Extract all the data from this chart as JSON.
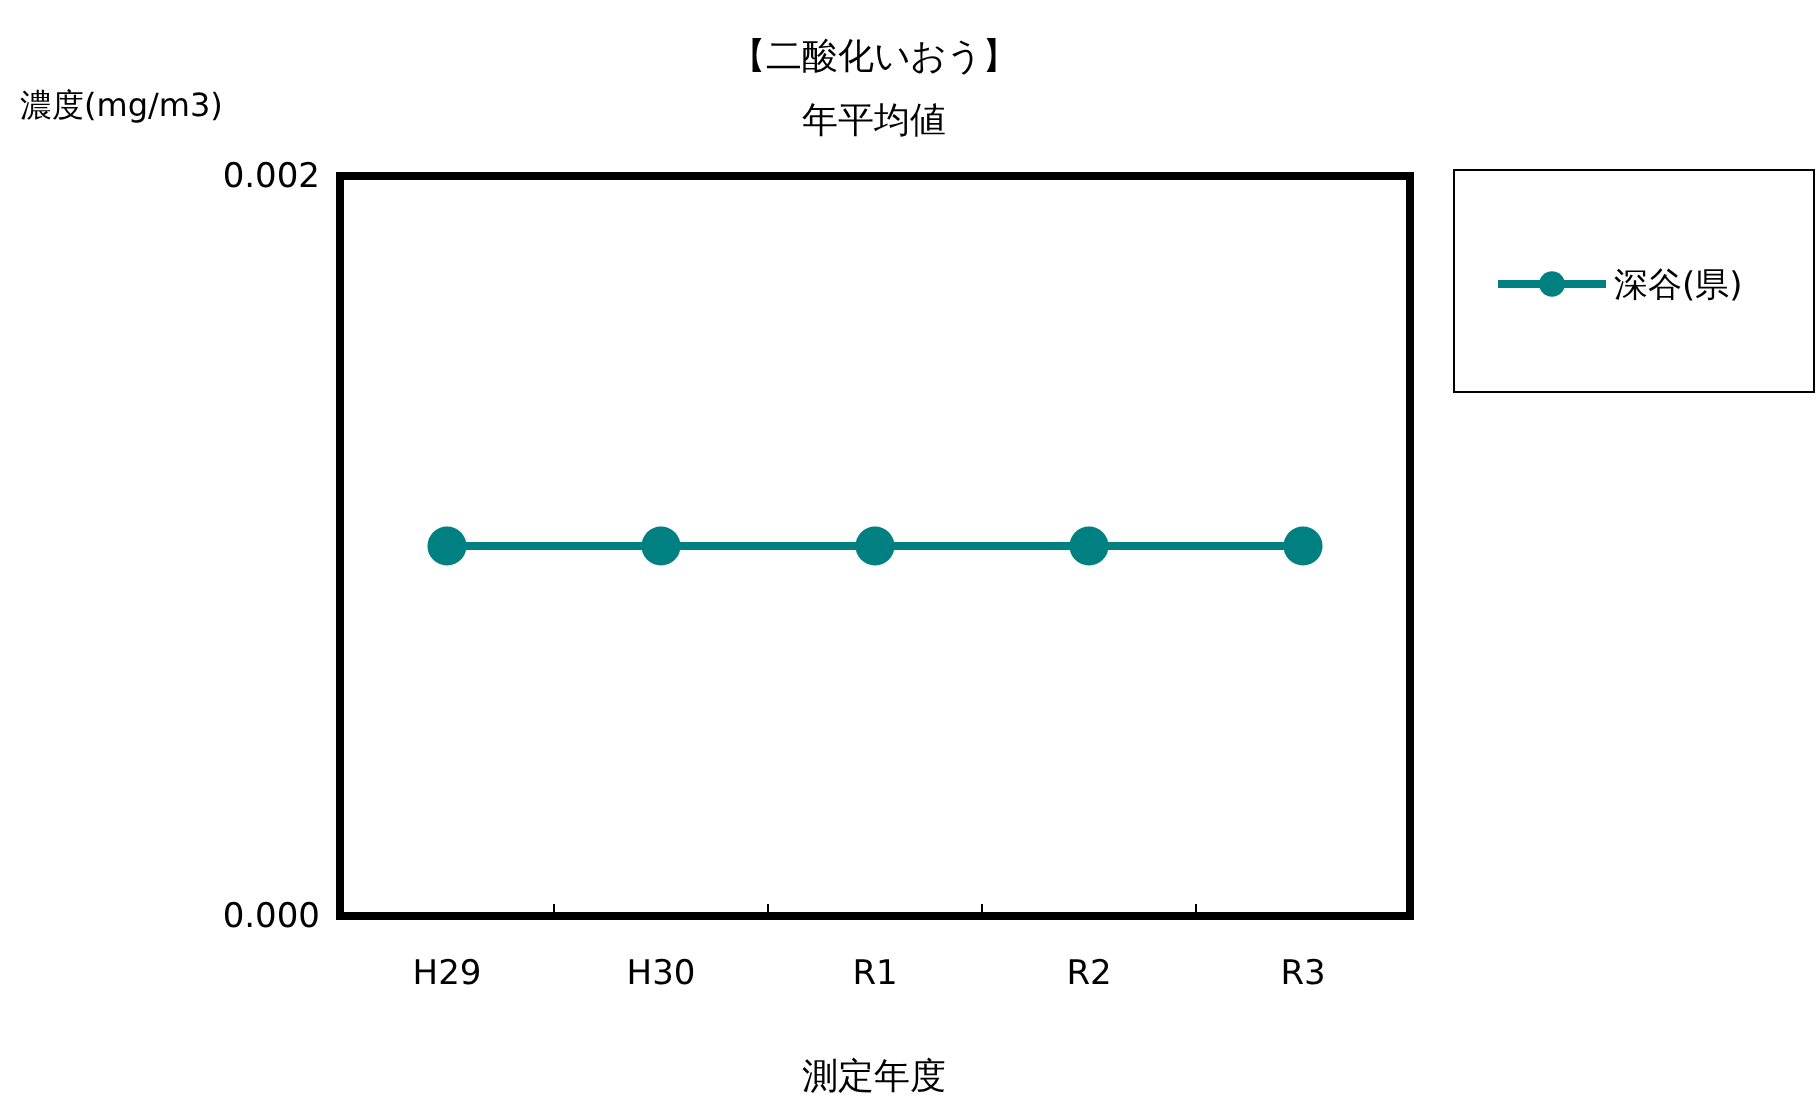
{
  "chart_data": {
    "type": "line",
    "title": "【二酸化いおう】",
    "subtitle": "年平均値",
    "ylabel": "濃度(mg/m3)",
    "xlabel": "測定年度",
    "categories": [
      "H29",
      "H30",
      "R1",
      "R2",
      "R3"
    ],
    "series": [
      {
        "name": "深谷(県)",
        "color": "#008080",
        "values": [
          0.001,
          0.001,
          0.001,
          0.001,
          0.001
        ]
      }
    ],
    "ylim": [
      0,
      0.002
    ],
    "yticks": [
      {
        "value": 0,
        "label": "0.000"
      },
      {
        "value": 0.002,
        "label": "0.002"
      }
    ],
    "legend": "right",
    "marker": "circle",
    "line_style": "solid"
  }
}
